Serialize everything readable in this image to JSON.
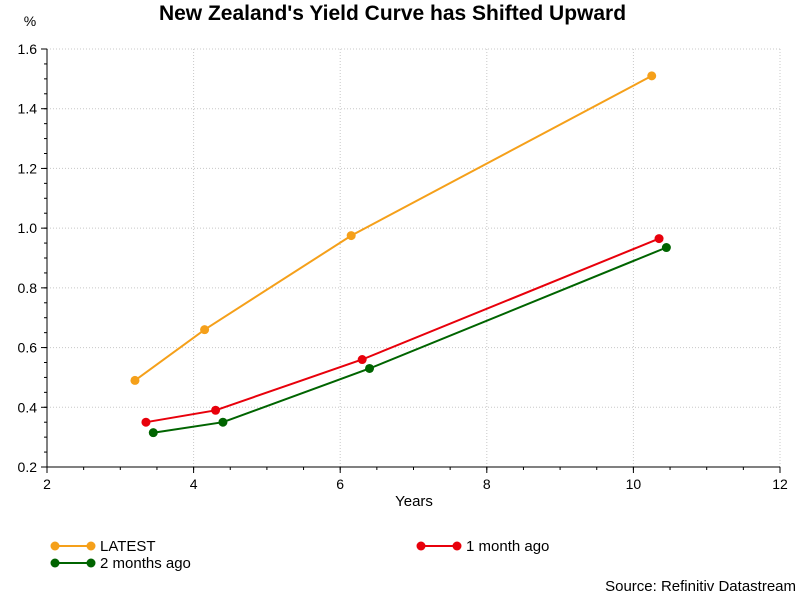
{
  "chart_data": {
    "type": "line",
    "title": "New Zealand's Yield Curve has Shifted Upward",
    "xlabel": "Years",
    "ylabel": "%",
    "xlim": [
      2,
      12
    ],
    "ylim": [
      0.2,
      1.6
    ],
    "xticks": [
      2,
      4,
      6,
      8,
      10,
      12
    ],
    "yticks": [
      0.2,
      0.4,
      0.6,
      0.8,
      1.0,
      1.2,
      1.4,
      1.6
    ],
    "ytick_labels": [
      "0.2",
      "0.4",
      "0.6",
      "0.8",
      "1.0",
      "1.2",
      "1.4",
      "1.6"
    ],
    "grid": true,
    "legend_position": "bottom",
    "series": [
      {
        "name": "LATEST",
        "color": "#f5a01a",
        "points": [
          [
            3.2,
            0.49
          ],
          [
            4.15,
            0.66
          ],
          [
            6.15,
            0.975
          ],
          [
            10.25,
            1.51
          ]
        ]
      },
      {
        "name": "1 month ago",
        "color": "#e8000b",
        "points": [
          [
            3.35,
            0.35
          ],
          [
            4.3,
            0.39
          ],
          [
            6.3,
            0.56
          ],
          [
            10.35,
            0.965
          ]
        ]
      },
      {
        "name": "2 months ago",
        "color": "#006400",
        "points": [
          [
            3.45,
            0.315
          ],
          [
            4.4,
            0.35
          ],
          [
            6.4,
            0.53
          ],
          [
            10.45,
            0.935
          ]
        ]
      }
    ],
    "source": "Source: Refinitiv Datastream"
  }
}
